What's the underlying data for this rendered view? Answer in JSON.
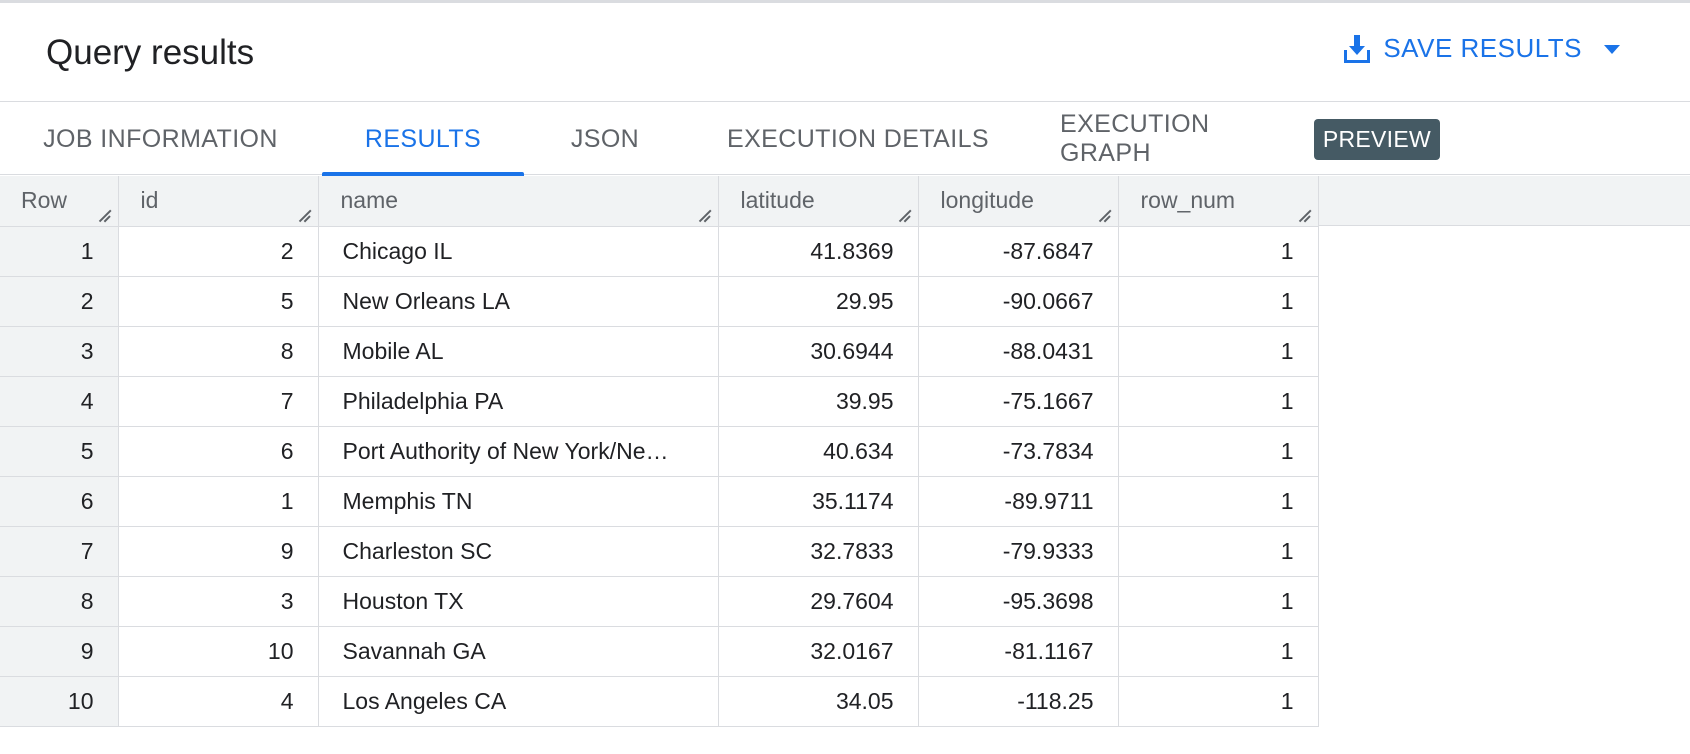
{
  "header": {
    "title": "Query results",
    "save_label": "SAVE RESULTS",
    "save_icon": "download-icon",
    "dropdown_icon": "caret-down-icon"
  },
  "tabs": [
    {
      "label": "JOB INFORMATION",
      "active": false
    },
    {
      "label": "RESULTS",
      "active": true
    },
    {
      "label": "JSON",
      "active": false
    },
    {
      "label": "EXECUTION DETAILS",
      "active": false
    },
    {
      "label": "EXECUTION GRAPH",
      "active": false,
      "badge": "PREVIEW"
    }
  ],
  "table": {
    "columns": [
      "Row",
      "id",
      "name",
      "latitude",
      "longitude",
      "row_num"
    ],
    "rows": [
      [
        "1",
        "2",
        "Chicago IL",
        "41.8369",
        "-87.6847",
        "1"
      ],
      [
        "2",
        "5",
        "New Orleans LA",
        "29.95",
        "-90.0667",
        "1"
      ],
      [
        "3",
        "8",
        "Mobile AL",
        "30.6944",
        "-88.0431",
        "1"
      ],
      [
        "4",
        "7",
        "Philadelphia PA",
        "39.95",
        "-75.1667",
        "1"
      ],
      [
        "5",
        "6",
        "Port Authority of New York/Ne…",
        "40.634",
        "-73.7834",
        "1"
      ],
      [
        "6",
        "1",
        "Memphis TN",
        "35.1174",
        "-89.9711",
        "1"
      ],
      [
        "7",
        "9",
        "Charleston SC",
        "32.7833",
        "-79.9333",
        "1"
      ],
      [
        "8",
        "3",
        "Houston TX",
        "29.7604",
        "-95.3698",
        "1"
      ],
      [
        "9",
        "10",
        "Savannah GA",
        "32.0167",
        "-81.1167",
        "1"
      ],
      [
        "10",
        "4",
        "Los Angeles CA",
        "34.05",
        "-118.25",
        "1"
      ]
    ]
  },
  "colors": {
    "accent": "#1a73e8",
    "badge_bg": "#455a64",
    "header_bg": "#f1f3f4",
    "border": "#dadce0"
  }
}
